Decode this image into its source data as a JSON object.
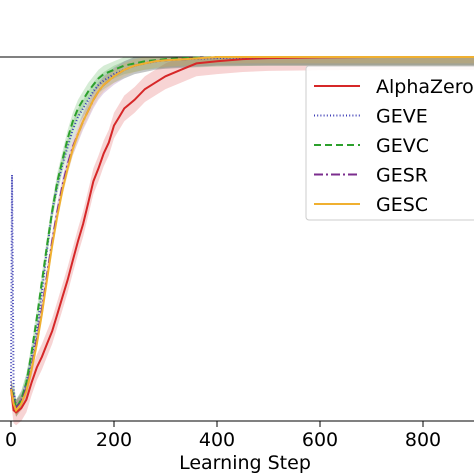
{
  "chart_data": {
    "type": "line",
    "title": "",
    "xlabel": "Learning Step",
    "ylabel": "",
    "xlim": [
      -20,
      900
    ],
    "ylim": [
      -0.7,
      1.0
    ],
    "x_ticks": [
      0,
      200,
      400,
      600,
      800
    ],
    "x_tick_labels": [
      "0",
      "200",
      "400",
      "600",
      "800"
    ],
    "grid": false,
    "legend_position": "right",
    "series": [
      {
        "name": "AlphaZero",
        "color": "#d62728",
        "dash": "solid",
        "x": [
          0,
          5,
          10,
          20,
          30,
          40,
          50,
          60,
          70,
          80,
          90,
          100,
          110,
          120,
          130,
          140,
          150,
          160,
          170,
          180,
          190,
          200,
          210,
          220,
          240,
          260,
          280,
          300,
          330,
          360,
          400,
          450,
          500,
          600,
          700,
          800,
          900
        ],
        "y": [
          -0.55,
          -0.65,
          -0.66,
          -0.64,
          -0.6,
          -0.52,
          -0.45,
          -0.4,
          -0.34,
          -0.28,
          -0.2,
          -0.12,
          -0.04,
          0.05,
          0.14,
          0.22,
          0.32,
          0.42,
          0.48,
          0.55,
          0.6,
          0.68,
          0.72,
          0.76,
          0.8,
          0.85,
          0.88,
          0.91,
          0.94,
          0.97,
          0.98,
          0.99,
          0.995,
          0.998,
          1.0,
          1.0,
          1.0
        ],
        "band": 0.06
      },
      {
        "name": "GEVE",
        "color": "#2ca02c",
        "dash": "1,2.2",
        "x": [
          0,
          2,
          5,
          10,
          20,
          30,
          40,
          50,
          60,
          70,
          80,
          90,
          100,
          110,
          120,
          130,
          140,
          150,
          160,
          170,
          180,
          200,
          220,
          240,
          260,
          280,
          300,
          340,
          400,
          500,
          600,
          700,
          800,
          900
        ],
        "y": [
          -0.55,
          0.45,
          -0.55,
          -0.64,
          -0.6,
          -0.52,
          -0.4,
          -0.28,
          -0.1,
          0.1,
          0.28,
          0.4,
          0.5,
          0.58,
          0.66,
          0.72,
          0.76,
          0.8,
          0.84,
          0.87,
          0.89,
          0.92,
          0.94,
          0.96,
          0.97,
          0.98,
          0.985,
          0.99,
          0.995,
          1.0,
          1.0,
          1.0,
          1.0,
          1.0
        ],
        "band": 0.04
      },
      {
        "name": "GEVC",
        "color": "#2ca02c",
        "dash": "7,4",
        "x": [
          0,
          5,
          10,
          20,
          30,
          40,
          50,
          60,
          70,
          80,
          90,
          100,
          110,
          120,
          130,
          140,
          150,
          160,
          170,
          180,
          200,
          220,
          240,
          260,
          280,
          300,
          340,
          400,
          500,
          600,
          700,
          800,
          900
        ],
        "y": [
          -0.55,
          -0.58,
          -0.64,
          -0.6,
          -0.52,
          -0.38,
          -0.22,
          -0.05,
          0.12,
          0.28,
          0.42,
          0.52,
          0.62,
          0.7,
          0.76,
          0.8,
          0.84,
          0.87,
          0.9,
          0.92,
          0.94,
          0.96,
          0.97,
          0.98,
          0.985,
          0.99,
          0.995,
          1.0,
          1.0,
          1.0,
          1.0,
          1.0,
          1.0
        ],
        "band": 0.04
      },
      {
        "name": "GESR",
        "color": "#7b2d8e",
        "dash": "9,3,2,3",
        "x": [
          0,
          5,
          10,
          20,
          30,
          40,
          50,
          60,
          70,
          80,
          90,
          100,
          110,
          120,
          130,
          140,
          150,
          160,
          170,
          180,
          200,
          220,
          240,
          260,
          280,
          300,
          340,
          400,
          500,
          600,
          700,
          800,
          900
        ],
        "y": [
          -0.55,
          -0.6,
          -0.64,
          -0.61,
          -0.55,
          -0.45,
          -0.32,
          -0.18,
          -0.02,
          0.14,
          0.28,
          0.4,
          0.5,
          0.58,
          0.64,
          0.7,
          0.75,
          0.8,
          0.84,
          0.87,
          0.91,
          0.94,
          0.96,
          0.97,
          0.98,
          0.985,
          0.99,
          1.0,
          1.0,
          1.0,
          1.0,
          1.0,
          1.0
        ],
        "band": 0.04
      },
      {
        "name": "GESC",
        "color": "#f0b030",
        "dash": "solid",
        "x": [
          0,
          5,
          10,
          20,
          30,
          40,
          50,
          60,
          70,
          80,
          90,
          100,
          110,
          120,
          130,
          140,
          150,
          160,
          170,
          180,
          200,
          220,
          240,
          260,
          280,
          300,
          340,
          400,
          500,
          600,
          700,
          800,
          900
        ],
        "y": [
          -0.55,
          -0.62,
          -0.65,
          -0.62,
          -0.56,
          -0.46,
          -0.34,
          -0.2,
          -0.04,
          0.12,
          0.26,
          0.38,
          0.48,
          0.57,
          0.64,
          0.7,
          0.75,
          0.8,
          0.84,
          0.87,
          0.91,
          0.94,
          0.96,
          0.97,
          0.98,
          0.985,
          0.99,
          1.0,
          1.0,
          1.0,
          1.0,
          1.0,
          1.0
        ],
        "band": 0.03
      }
    ]
  }
}
